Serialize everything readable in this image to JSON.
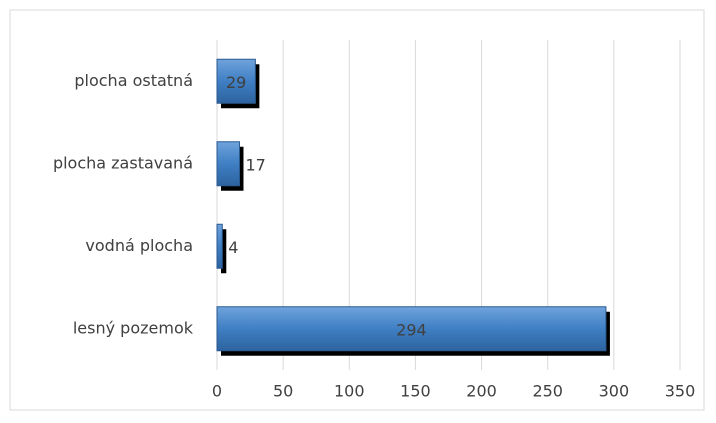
{
  "chart_data": {
    "type": "bar",
    "orientation": "horizontal",
    "categories": [
      "lesný pozemok",
      "vodná plocha",
      "plocha zastavaná",
      "plocha ostatná"
    ],
    "values": [
      294,
      4,
      17,
      29
    ],
    "color": "#3f7fc4",
    "xlim": [
      0,
      350
    ],
    "xticks": [
      0,
      50,
      100,
      150,
      200,
      250,
      300,
      350
    ],
    "grid": true
  }
}
